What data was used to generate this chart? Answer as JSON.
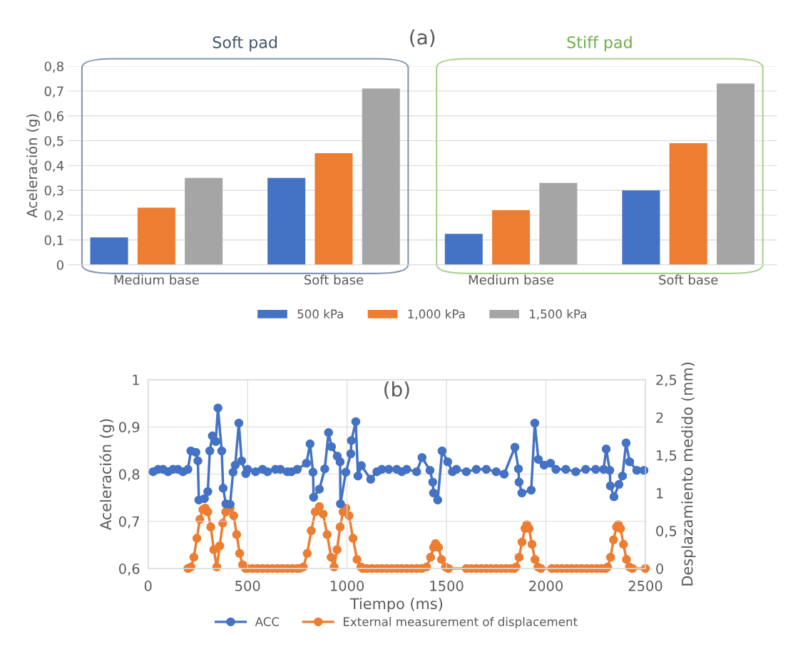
{
  "chart_data": [
    {
      "type": "bar",
      "title": "(a)",
      "ylabel": "Aceleración (g)",
      "categories": [
        "Medium base",
        "Soft base",
        "Medium base",
        "Soft base"
      ],
      "series": [
        {
          "name": "500 kPa",
          "color": "#4472c4",
          "values": [
            0.11,
            0.35,
            0.125,
            0.3
          ]
        },
        {
          "name": "1,000 kPa",
          "color": "#ed7d31",
          "values": [
            0.23,
            0.45,
            0.22,
            0.49
          ]
        },
        {
          "name": "1,500 kPa",
          "color": "#a5a5a5",
          "values": [
            0.35,
            0.71,
            0.33,
            0.73
          ]
        }
      ],
      "ylim": [
        0,
        0.8
      ],
      "yticks": [
        0,
        {
          "value": 0.1,
          "label": "0,1"
        },
        {
          "value": 0.2,
          "label": "0,2"
        },
        {
          "value": 0.3,
          "label": "0,3"
        },
        {
          "value": 0.4,
          "label": "0,4"
        },
        {
          "value": 0.5,
          "label": "0,5"
        },
        {
          "value": 0.6,
          "label": "0,6"
        },
        {
          "value": 0.7,
          "label": "0,7"
        },
        {
          "value": 0.8,
          "label": "0,8"
        }
      ],
      "annotations": [
        "Soft pad",
        "Stiff pad"
      ],
      "grid": "y",
      "legend": "bottom"
    },
    {
      "type": "line",
      "title": "(b)",
      "xlabel": "Tiempo (ms)",
      "ylabel": "Aceleración (g)",
      "y2label": "Desplazamiento medido (mm)",
      "series": [
        {
          "name": "ACC",
          "color": "#4472c4",
          "x": [
            25,
            50,
            75,
            100,
            125,
            150,
            175,
            200,
            215,
            240,
            250,
            255,
            283,
            300,
            310,
            323,
            340,
            351,
            370,
            377,
            391,
            412,
            427,
            438,
            456,
            470,
            491,
            500,
            540,
            575,
            600,
            640,
            665,
            700,
            720,
            750,
            796,
            814,
            829,
            832,
            861,
            888,
            907,
            922,
            951,
            965,
            967,
            994,
            1019,
            1022,
            1044,
            1055,
            1072,
            1119,
            1150,
            1175,
            1210,
            1250,
            1275,
            1300,
            1350,
            1377,
            1417,
            1431,
            1435,
            1456,
            1478,
            1506,
            1530,
            1550,
            1600,
            1650,
            1700,
            1750,
            1790,
            1844,
            1862,
            1865,
            1879,
            1926,
            1944,
            1962,
            1991,
            2023,
            2050,
            2100,
            2150,
            2200,
            2250,
            2290,
            2303,
            2321,
            2324,
            2342,
            2367,
            2385,
            2403,
            2421,
            2457,
            2493
          ],
          "values": [
            0.805,
            0.81,
            0.81,
            0.805,
            0.81,
            0.81,
            0.805,
            0.81,
            0.849,
            0.846,
            0.828,
            0.745,
            0.748,
            0.763,
            0.849,
            0.881,
            0.869,
            0.94,
            0.849,
            0.77,
            0.737,
            0.736,
            0.804,
            0.819,
            0.908,
            0.828,
            0.801,
            0.81,
            0.805,
            0.81,
            0.805,
            0.81,
            0.81,
            0.805,
            0.805,
            0.81,
            0.823,
            0.864,
            0.804,
            0.751,
            0.768,
            0.811,
            0.888,
            0.858,
            0.838,
            0.826,
            0.737,
            0.804,
            0.843,
            0.871,
            0.911,
            0.796,
            0.818,
            0.789,
            0.805,
            0.81,
            0.81,
            0.81,
            0.805,
            0.81,
            0.805,
            0.835,
            0.808,
            0.783,
            0.76,
            0.745,
            0.849,
            0.826,
            0.805,
            0.81,
            0.805,
            0.81,
            0.81,
            0.805,
            0.8,
            0.857,
            0.811,
            0.783,
            0.76,
            0.766,
            0.908,
            0.831,
            0.819,
            0.823,
            0.81,
            0.81,
            0.805,
            0.81,
            0.81,
            0.81,
            0.853,
            0.808,
            0.775,
            0.752,
            0.778,
            0.796,
            0.866,
            0.826,
            0.808,
            0.808
          ]
        },
        {
          "name": "External measurement of displacement",
          "color": "#ed7d31",
          "axis": "y2",
          "x": [
            200,
            215,
            230,
            245,
            260,
            275,
            287,
            300,
            315,
            330,
            345,
            360,
            375,
            390,
            412,
            430,
            445,
            460,
            475,
            490,
            500,
            525,
            550,
            575,
            600,
            625,
            650,
            675,
            700,
            725,
            750,
            760,
            780,
            800,
            820,
            840,
            861,
            880,
            900,
            920,
            935,
            950,
            965,
            980,
            994,
            1010,
            1030,
            1050,
            1070,
            1080,
            1100,
            1125,
            1150,
            1175,
            1200,
            1225,
            1250,
            1275,
            1300,
            1325,
            1350,
            1375,
            1400,
            1420,
            1435,
            1445,
            1460,
            1475,
            1495,
            1510,
            1600,
            1625,
            1650,
            1675,
            1700,
            1725,
            1750,
            1775,
            1800,
            1825,
            1840,
            1850,
            1865,
            1880,
            1895,
            1904,
            1915,
            1930,
            1945,
            1960,
            1975,
            2030,
            2055,
            2080,
            2105,
            2130,
            2155,
            2180,
            2205,
            2230,
            2255,
            2280,
            2300,
            2310,
            2325,
            2340,
            2355,
            2364,
            2375,
            2390,
            2405,
            2420,
            2435,
            2500
          ],
          "values": [
            0,
            0.02,
            0.15,
            0.4,
            0.65,
            0.78,
            0.8,
            0.75,
            0.55,
            0.25,
            0.02,
            0.3,
            0.6,
            0.75,
            0.8,
            0.7,
            0.45,
            0.2,
            0.05,
            0,
            0,
            0,
            0,
            0,
            0,
            0,
            0,
            0,
            0,
            0,
            0,
            0,
            0.02,
            0.2,
            0.5,
            0.75,
            0.82,
            0.72,
            0.45,
            0.15,
            0.02,
            0.25,
            0.55,
            0.75,
            0.8,
            0.7,
            0.4,
            0.12,
            0.02,
            0,
            0,
            0,
            0,
            0,
            0,
            0,
            0,
            0,
            0,
            0,
            0,
            0,
            0.02,
            0.15,
            0.28,
            0.33,
            0.28,
            0.12,
            0.02,
            0,
            0,
            0,
            0,
            0,
            0,
            0,
            0,
            0,
            0,
            0,
            0,
            0.02,
            0.15,
            0.35,
            0.53,
            0.58,
            0.53,
            0.32,
            0.12,
            0.02,
            0,
            0,
            0,
            0,
            0,
            0,
            0,
            0,
            0,
            0,
            0,
            0,
            0,
            0.02,
            0.15,
            0.38,
            0.55,
            0.58,
            0.53,
            0.32,
            0.12,
            0.02,
            0,
            0
          ]
        }
      ],
      "xlim": [
        0,
        2500
      ],
      "xticks": [
        0,
        500,
        1000,
        1500,
        2000,
        2500
      ],
      "ylim": [
        0.6,
        1
      ],
      "yticks": [
        {
          "value": 0.6,
          "label": "0,6"
        },
        {
          "value": 0.7,
          "label": "0,7"
        },
        {
          "value": 0.8,
          "label": "0,8"
        },
        {
          "value": 0.9,
          "label": "0,9"
        },
        1
      ],
      "y2lim": [
        0,
        2.5
      ],
      "y2ticks": [
        0,
        {
          "value": 0.5,
          "label": "0,5"
        },
        1,
        {
          "value": 1.5,
          "label": "1,5"
        },
        2,
        {
          "value": 2.5,
          "label": "2,5"
        }
      ],
      "grid": true,
      "legend": "bottom",
      "marker": "circle",
      "line_style": "solid"
    }
  ]
}
